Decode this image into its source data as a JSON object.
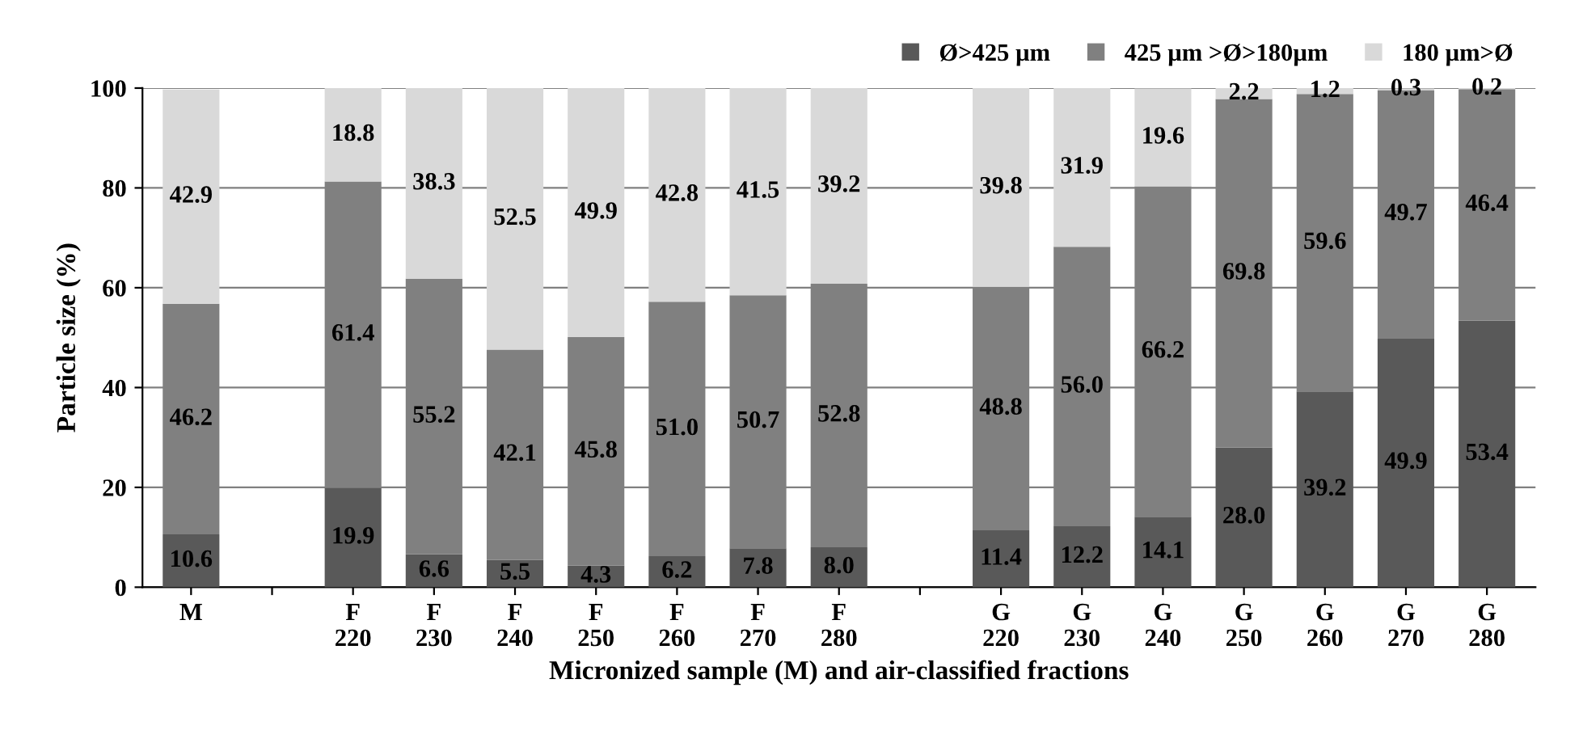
{
  "chart_data": {
    "type": "bar",
    "stacked": true,
    "ylabel": "Particle size (%)",
    "xlabel": "Micronized sample (M) and air-classified fractions",
    "categories": [
      "M",
      null,
      "F\n220",
      "F\n230",
      "F\n240",
      "F\n250",
      "F\n260",
      "F\n270",
      "F\n280",
      null,
      "G\n220",
      "G\n230",
      "G\n240",
      "G\n250",
      "G\n260",
      "G\n270",
      "G\n280"
    ],
    "series": [
      {
        "name": "Ø>425 µm",
        "color": "#595959",
        "values": [
          10.6,
          null,
          19.9,
          6.6,
          5.5,
          4.3,
          6.2,
          7.8,
          8.0,
          null,
          11.4,
          12.2,
          14.1,
          28.0,
          39.2,
          49.9,
          53.4
        ],
        "value_labels": [
          "10.6",
          null,
          "19.9",
          "6.6",
          "5.5",
          "4.3",
          "6.2",
          "7.8",
          "8.0",
          null,
          "11.4",
          "12.2",
          "14.1",
          "28.0",
          "39.2",
          "49.9",
          "53.4"
        ]
      },
      {
        "name": "425 µm >Ø>180µm",
        "color": "#808080",
        "values": [
          46.2,
          null,
          61.4,
          55.2,
          42.1,
          45.8,
          51.0,
          50.7,
          52.8,
          null,
          48.8,
          56.0,
          66.2,
          69.8,
          59.6,
          49.7,
          46.4
        ],
        "value_labels": [
          "46.2",
          null,
          "61.4",
          "55.2",
          "42.1",
          "45.8",
          "51.0",
          "50.7",
          "52.8",
          null,
          "48.8",
          "56.0",
          "66.2",
          "69.8",
          "59.6",
          "49.7",
          "46.4"
        ]
      },
      {
        "name": "180 µm>Ø",
        "color": "#d9d9d9",
        "values": [
          42.9,
          null,
          18.8,
          38.3,
          52.5,
          49.9,
          42.8,
          41.5,
          39.2,
          null,
          39.8,
          31.9,
          19.6,
          2.2,
          1.2,
          0.3,
          0.2
        ],
        "value_labels": [
          "42.9",
          null,
          "18.8",
          "38.3",
          "52.5",
          "49.9",
          "42.8",
          "41.5",
          "39.2",
          null,
          "39.8",
          "31.9",
          "19.6",
          "2.2",
          "1.2",
          "0.3",
          "0.2"
        ]
      }
    ],
    "ylim": [
      0,
      100
    ],
    "yticks": [
      0,
      20,
      40,
      60,
      80,
      100
    ],
    "grid": "y",
    "legend": "top right"
  }
}
